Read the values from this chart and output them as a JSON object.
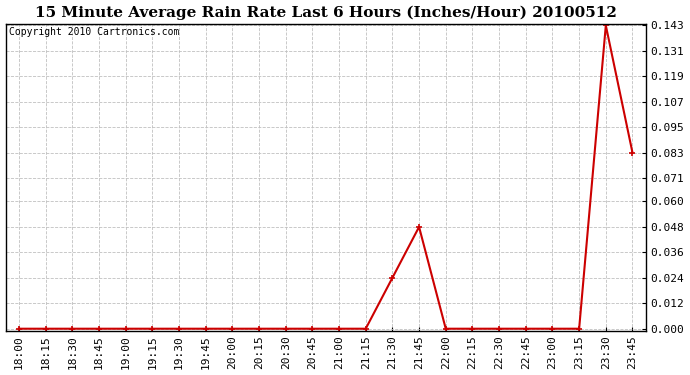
{
  "title": "15 Minute Average Rain Rate Last 6 Hours (Inches/Hour) 20100512",
  "copyright": "Copyright 2010 Cartronics.com",
  "x_labels": [
    "18:00",
    "18:15",
    "18:30",
    "18:45",
    "19:00",
    "19:15",
    "19:30",
    "19:45",
    "20:00",
    "20:15",
    "20:30",
    "20:45",
    "21:00",
    "21:15",
    "21:30",
    "21:45",
    "22:00",
    "22:15",
    "22:30",
    "22:45",
    "23:00",
    "23:15",
    "23:30",
    "23:45"
  ],
  "y_values": [
    0.0,
    0.0,
    0.0,
    0.0,
    0.0,
    0.0,
    0.0,
    0.0,
    0.0,
    0.0,
    0.0,
    0.0,
    0.0,
    0.0,
    0.024,
    0.048,
    0.0,
    0.0,
    0.0,
    0.0,
    0.0,
    0.0,
    0.143,
    0.083
  ],
  "y_ticks": [
    0.0,
    0.012,
    0.024,
    0.036,
    0.048,
    0.06,
    0.071,
    0.083,
    0.095,
    0.107,
    0.119,
    0.131,
    0.143
  ],
  "ylim": [
    0.0,
    0.143
  ],
  "line_color": "#cc0000",
  "marker_color": "#cc0000",
  "bg_color": "#ffffff",
  "grid_color": "#c0c0c0",
  "title_fontsize": 11,
  "copyright_fontsize": 7,
  "tick_fontsize": 8
}
